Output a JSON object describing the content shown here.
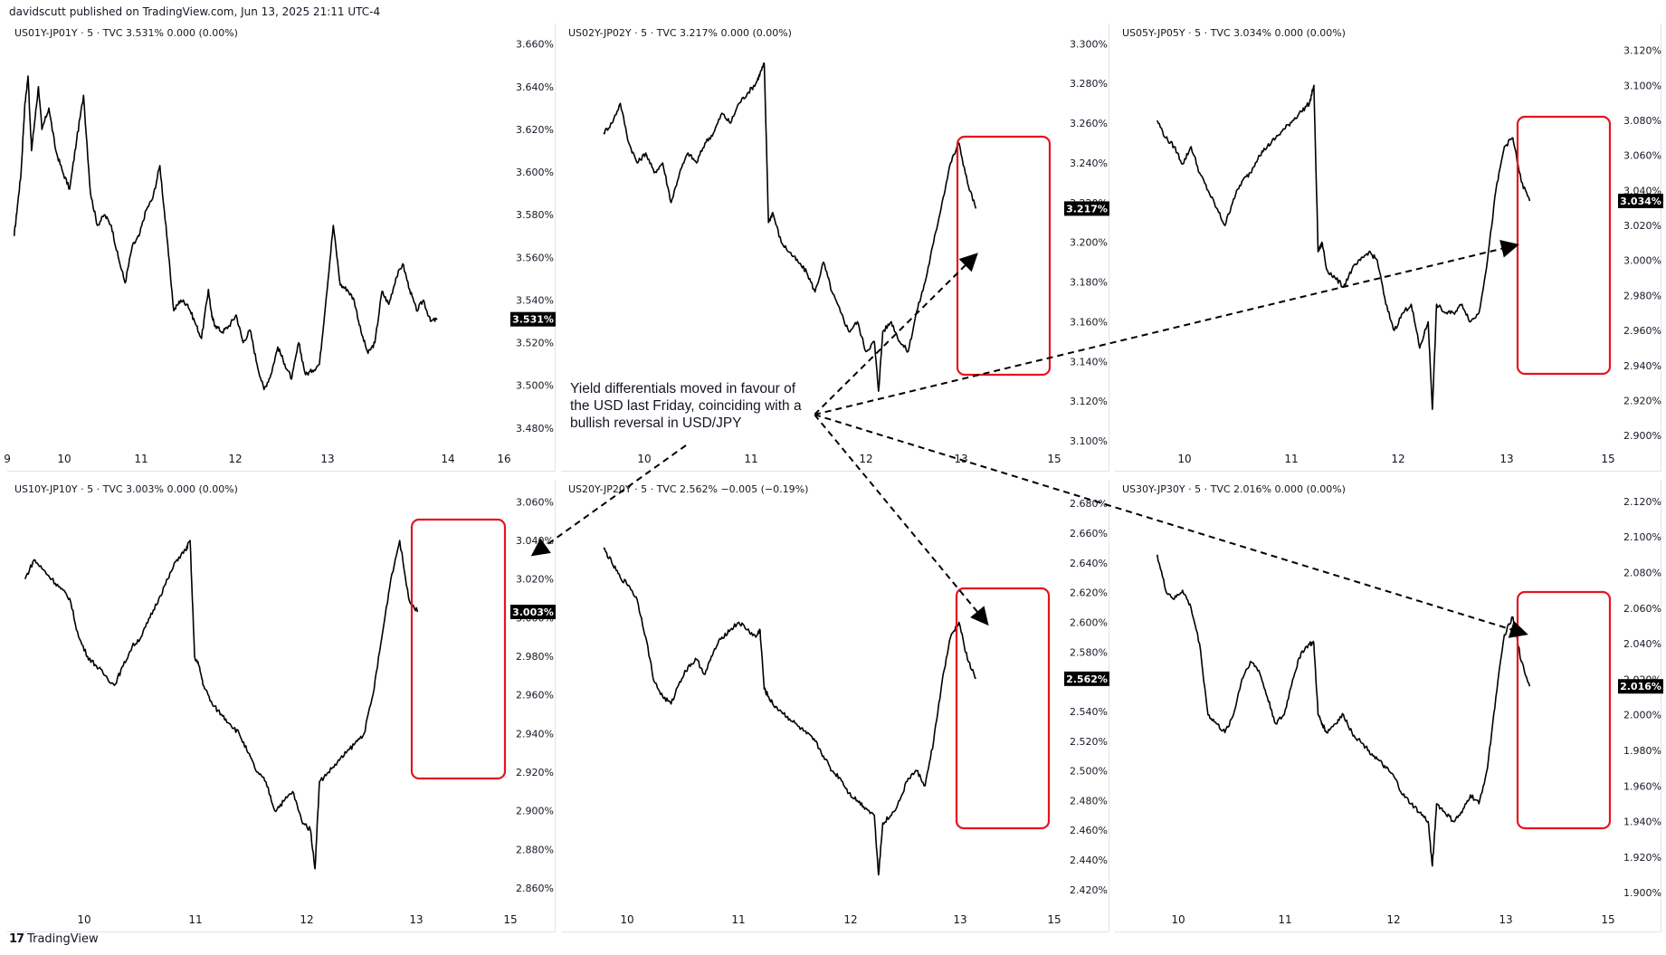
{
  "header": {
    "publisher_line": "davidscutt published on TradingView.com, Jun 13, 2025 21:11 UTC-4"
  },
  "footer": {
    "logo_mark": "17",
    "logo_text": "TradingView"
  },
  "annotation": {
    "text": "Yield differentials moved in favour of the USD last Friday, coinciding with a bullish reversal in USD/JPY"
  },
  "colors": {
    "line": "#000000",
    "highlight_box": "#e5141e",
    "grid": "#f0f3fa",
    "axis_text": "#131722",
    "last_badge_bg": "#000000",
    "last_badge_text": "#ffffff"
  },
  "chart_data": [
    {
      "type": "line",
      "legend": "US01Y-JP01Y · 5 · TVC  3.531%  0.000 (0.00%)",
      "x_ticks": [
        "9",
        "10",
        "11",
        "12",
        "13",
        "14",
        "16"
      ],
      "y_ticks": [
        "3.660%",
        "3.640%",
        "3.620%",
        "3.600%",
        "3.580%",
        "3.560%",
        "3.540%",
        "3.520%",
        "3.500%",
        "3.480%"
      ],
      "ylim": [
        3.474,
        3.662
      ],
      "last_value_label": "3.531%",
      "series": [
        {
          "x": [
            9.0,
            9.05,
            9.1,
            9.15,
            9.2,
            9.25,
            9.3,
            9.35,
            9.4,
            9.5,
            9.6,
            9.7,
            9.8,
            9.9,
            10.0,
            10.1,
            10.2,
            10.3,
            10.4,
            10.5,
            10.6,
            10.7,
            10.8,
            10.9,
            11.0,
            11.1,
            11.2,
            11.3,
            11.4,
            11.5,
            11.6,
            11.7,
            11.8,
            11.85,
            11.9,
            12.0,
            12.1,
            12.2,
            12.3,
            12.4,
            12.5,
            12.6,
            12.7,
            12.8,
            12.9,
            13.0,
            13.1,
            13.2,
            13.3,
            13.4,
            13.5,
            13.6,
            13.7,
            13.8,
            13.9,
            14.0,
            14.1,
            14.2,
            14.3,
            14.4,
            14.5,
            14.6,
            14.7,
            14.8,
            14.9,
            15.0,
            15.1
          ],
          "values": [
            3.57,
            3.585,
            3.6,
            3.63,
            3.645,
            3.61,
            3.625,
            3.64,
            3.62,
            3.63,
            3.61,
            3.6,
            3.592,
            3.615,
            3.636,
            3.59,
            3.575,
            3.58,
            3.575,
            3.56,
            3.548,
            3.565,
            3.57,
            3.582,
            3.588,
            3.603,
            3.57,
            3.535,
            3.54,
            3.538,
            3.53,
            3.522,
            3.545,
            3.532,
            3.528,
            3.525,
            3.528,
            3.533,
            3.52,
            3.526,
            3.51,
            3.498,
            3.505,
            3.518,
            3.51,
            3.503,
            3.52,
            3.505,
            3.507,
            3.51,
            3.542,
            3.575,
            3.547,
            3.545,
            3.54,
            3.525,
            3.515,
            3.52,
            3.544,
            3.538,
            3.55,
            3.557,
            3.545,
            3.535,
            3.54,
            3.53,
            3.531
          ]
        }
      ]
    },
    {
      "type": "line",
      "legend": "US02Y-JP02Y · 5 · TVC  3.217%  0.000 (0.00%)",
      "x_ticks": [
        "10",
        "11",
        "12",
        "13",
        "15"
      ],
      "y_ticks": [
        "3.300%",
        "3.280%",
        "3.260%",
        "3.240%",
        "3.220%",
        "3.200%",
        "3.180%",
        "3.160%",
        "3.140%",
        "3.120%",
        "3.100%"
      ],
      "ylim": [
        3.1,
        3.302
      ],
      "last_value_label": "3.217%",
      "series": [
        {
          "x": [
            9.5,
            9.6,
            9.7,
            9.8,
            9.9,
            10.0,
            10.1,
            10.2,
            10.3,
            10.4,
            10.5,
            10.6,
            10.7,
            10.8,
            10.9,
            11.0,
            11.1,
            11.2,
            11.3,
            11.35,
            11.4,
            11.45,
            11.5,
            11.6,
            11.7,
            11.8,
            11.9,
            12.0,
            12.1,
            12.2,
            12.3,
            12.4,
            12.5,
            12.6,
            12.7,
            12.75,
            12.8,
            12.9,
            13.0,
            13.1,
            13.2,
            13.3,
            13.4,
            13.5,
            13.6,
            13.7,
            13.8,
            13.9
          ],
          "values": [
            3.255,
            3.26,
            3.27,
            3.25,
            3.24,
            3.245,
            3.235,
            3.24,
            3.22,
            3.235,
            3.245,
            3.24,
            3.25,
            3.255,
            3.265,
            3.26,
            3.27,
            3.275,
            3.28,
            3.285,
            3.29,
            3.21,
            3.215,
            3.2,
            3.195,
            3.19,
            3.185,
            3.175,
            3.19,
            3.175,
            3.165,
            3.155,
            3.16,
            3.145,
            3.15,
            3.125,
            3.155,
            3.16,
            3.15,
            3.145,
            3.165,
            3.18,
            3.2,
            3.22,
            3.24,
            3.25,
            3.23,
            3.217
          ]
        }
      ]
    },
    {
      "type": "line",
      "legend": "US05Y-JP05Y · 5 · TVC  3.034%  0.000 (0.00%)",
      "x_ticks": [
        "10",
        "11",
        "12",
        "13",
        "15"
      ],
      "y_ticks": [
        "3.120%",
        "3.100%",
        "3.080%",
        "3.060%",
        "3.040%",
        "3.020%",
        "3.000%",
        "2.980%",
        "2.960%",
        "2.940%",
        "2.920%",
        "2.900%"
      ],
      "ylim": [
        2.897,
        3.126
      ],
      "last_value_label": "3.034%",
      "series": [
        {
          "x": [
            9.5,
            9.6,
            9.7,
            9.8,
            9.9,
            10.0,
            10.1,
            10.2,
            10.3,
            10.4,
            10.5,
            10.6,
            10.7,
            10.8,
            10.9,
            11.0,
            11.1,
            11.2,
            11.3,
            11.35,
            11.4,
            11.45,
            11.5,
            11.6,
            11.7,
            11.8,
            11.9,
            12.0,
            12.1,
            12.2,
            12.3,
            12.4,
            12.5,
            12.6,
            12.7,
            12.75,
            12.8,
            12.9,
            13.0,
            13.1,
            13.2,
            13.3,
            13.4,
            13.5,
            13.6,
            13.7,
            13.8,
            13.9
          ],
          "values": [
            3.08,
            3.07,
            3.065,
            3.055,
            3.065,
            3.05,
            3.04,
            3.03,
            3.02,
            3.035,
            3.045,
            3.05,
            3.06,
            3.065,
            3.07,
            3.075,
            3.08,
            3.085,
            3.09,
            3.1,
            3.005,
            3.01,
            2.995,
            2.99,
            2.985,
            2.995,
            3.0,
            3.005,
            3.0,
            2.975,
            2.96,
            2.97,
            2.975,
            2.95,
            2.965,
            2.915,
            2.975,
            2.97,
            2.97,
            2.975,
            2.965,
            2.97,
            3.0,
            3.04,
            3.065,
            3.07,
            3.045,
            3.034
          ]
        }
      ]
    },
    {
      "type": "line",
      "legend": "US10Y-JP10Y · 5 · TVC  3.003%  0.000 (0.00%)",
      "x_ticks": [
        "10",
        "11",
        "12",
        "13",
        "15"
      ],
      "y_ticks": [
        "3.060%",
        "3.040%",
        "3.020%",
        "3.000%",
        "2.980%",
        "2.960%",
        "2.940%",
        "2.920%",
        "2.900%",
        "2.880%",
        "2.860%"
      ],
      "ylim": [
        2.853,
        3.063
      ],
      "last_value_label": "3.003%",
      "series": [
        {
          "x": [
            9.5,
            9.6,
            9.7,
            9.8,
            9.9,
            10.0,
            10.1,
            10.2,
            10.3,
            10.4,
            10.5,
            10.6,
            10.7,
            10.8,
            10.9,
            11.0,
            11.1,
            11.2,
            11.3,
            11.35,
            11.4,
            11.45,
            11.5,
            11.6,
            11.7,
            11.8,
            11.9,
            12.0,
            12.1,
            12.2,
            12.3,
            12.4,
            12.5,
            12.6,
            12.7,
            12.75,
            12.8,
            12.9,
            13.0,
            13.1,
            13.2,
            13.3,
            13.4,
            13.5,
            13.6,
            13.7,
            13.8,
            13.9
          ],
          "values": [
            3.02,
            3.03,
            3.025,
            3.02,
            3.015,
            3.01,
            2.99,
            2.98,
            2.975,
            2.97,
            2.965,
            2.975,
            2.985,
            2.99,
            3.0,
            3.01,
            3.02,
            3.03,
            3.035,
            3.04,
            2.98,
            2.975,
            2.965,
            2.955,
            2.95,
            2.945,
            2.94,
            2.93,
            2.92,
            2.915,
            2.9,
            2.905,
            2.91,
            2.895,
            2.89,
            2.87,
            2.915,
            2.92,
            2.925,
            2.93,
            2.935,
            2.94,
            2.96,
            2.99,
            3.02,
            3.04,
            3.01,
            3.003
          ]
        }
      ]
    },
    {
      "type": "line",
      "legend": "US20Y-JP20Y · 5 · TVC  2.562%  −0.005 (−0.19%)",
      "x_ticks": [
        "10",
        "11",
        "12",
        "13",
        "15"
      ],
      "y_ticks": [
        "2.680%",
        "2.660%",
        "2.640%",
        "2.620%",
        "2.600%",
        "2.580%",
        "2.560%",
        "2.540%",
        "2.520%",
        "2.500%",
        "2.480%",
        "2.460%",
        "2.440%",
        "2.420%"
      ],
      "ylim": [
        2.412,
        2.685
      ],
      "last_value_label": "2.562%",
      "series": [
        {
          "x": [
            9.5,
            9.6,
            9.7,
            9.8,
            9.9,
            10.0,
            10.1,
            10.2,
            10.3,
            10.4,
            10.5,
            10.6,
            10.7,
            10.8,
            10.9,
            11.0,
            11.1,
            11.2,
            11.3,
            11.35,
            11.4,
            11.45,
            11.5,
            11.6,
            11.7,
            11.8,
            11.9,
            12.0,
            12.1,
            12.2,
            12.3,
            12.4,
            12.5,
            12.6,
            12.7,
            12.75,
            12.8,
            12.9,
            13.0,
            13.1,
            13.2,
            13.3,
            13.4,
            13.5,
            13.6,
            13.7,
            13.8,
            13.9
          ],
          "values": [
            2.65,
            2.64,
            2.63,
            2.625,
            2.615,
            2.59,
            2.56,
            2.55,
            2.545,
            2.56,
            2.57,
            2.575,
            2.565,
            2.58,
            2.59,
            2.595,
            2.6,
            2.595,
            2.59,
            2.595,
            2.555,
            2.55,
            2.545,
            2.54,
            2.535,
            2.53,
            2.525,
            2.52,
            2.51,
            2.5,
            2.495,
            2.485,
            2.48,
            2.475,
            2.47,
            2.43,
            2.465,
            2.47,
            2.48,
            2.495,
            2.5,
            2.49,
            2.52,
            2.56,
            2.59,
            2.6,
            2.575,
            2.562
          ]
        }
      ]
    },
    {
      "type": "line",
      "legend": "US30Y-JP30Y · 5 · TVC  2.016%  0.000 (0.00%)",
      "x_ticks": [
        "10",
        "11",
        "12",
        "13",
        "15"
      ],
      "y_ticks": [
        "2.120%",
        "2.100%",
        "2.080%",
        "2.060%",
        "2.040%",
        "2.020%",
        "2.000%",
        "1.980%",
        "1.960%",
        "1.940%",
        "1.920%",
        "1.900%"
      ],
      "ylim": [
        1.895,
        2.123
      ],
      "last_value_label": "2.016%",
      "series": [
        {
          "x": [
            9.5,
            9.6,
            9.7,
            9.8,
            9.9,
            10.0,
            10.1,
            10.2,
            10.3,
            10.4,
            10.5,
            10.6,
            10.7,
            10.8,
            10.9,
            11.0,
            11.1,
            11.2,
            11.3,
            11.35,
            11.4,
            11.45,
            11.5,
            11.6,
            11.7,
            11.8,
            11.9,
            12.0,
            12.1,
            12.2,
            12.3,
            12.4,
            12.5,
            12.6,
            12.7,
            12.75,
            12.8,
            12.9,
            13.0,
            13.1,
            13.2,
            13.3,
            13.4,
            13.5,
            13.6,
            13.7,
            13.8,
            13.9
          ],
          "values": [
            2.09,
            2.07,
            2.065,
            2.07,
            2.06,
            2.04,
            2.0,
            1.995,
            1.99,
            2.0,
            2.02,
            2.03,
            2.025,
            2.01,
            1.995,
            2.0,
            2.02,
            2.035,
            2.04,
            2.04,
            2.0,
            1.995,
            1.99,
            1.995,
            2.0,
            1.99,
            1.985,
            1.98,
            1.975,
            1.97,
            1.965,
            1.955,
            1.95,
            1.945,
            1.94,
            1.915,
            1.95,
            1.945,
            1.94,
            1.945,
            1.955,
            1.95,
            1.97,
            2.01,
            2.045,
            2.055,
            2.03,
            2.016
          ]
        }
      ]
    }
  ]
}
